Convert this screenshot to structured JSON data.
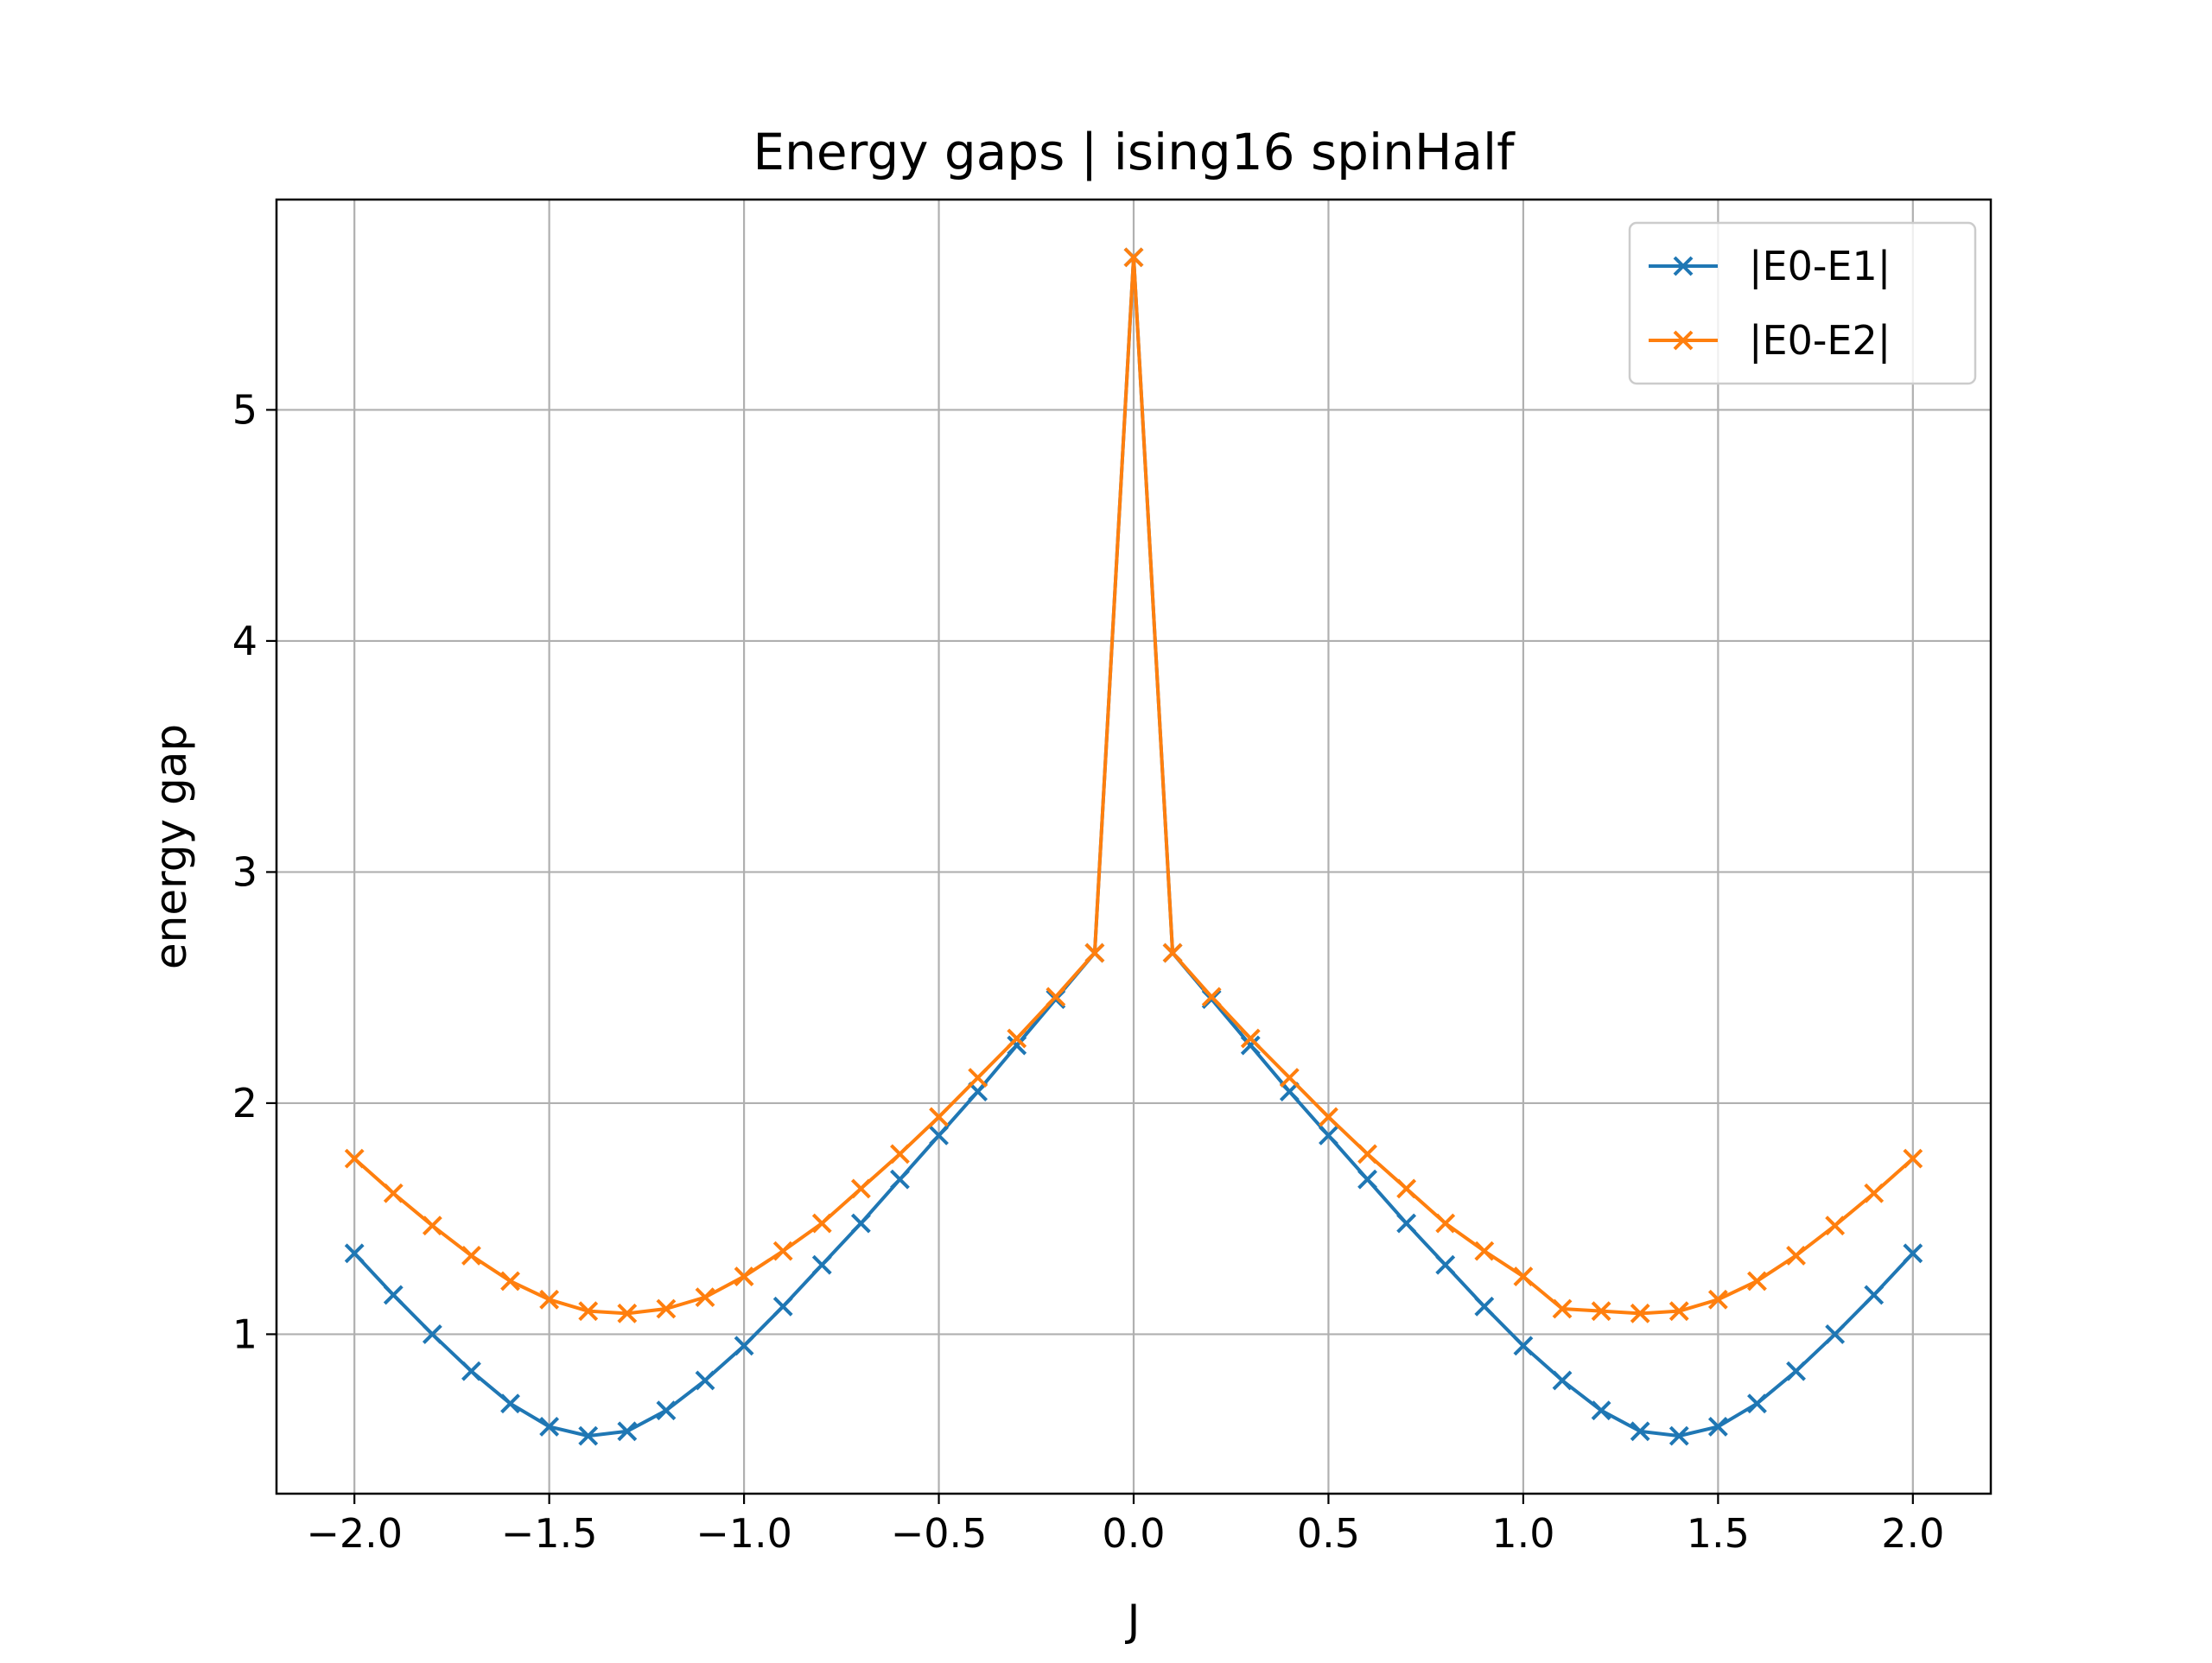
{
  "chart_data": {
    "type": "line",
    "title": "Energy gaps | ising16 spinHalf",
    "xlabel": "J",
    "ylabel": "energy gap",
    "xlim": [
      -2.2,
      2.2
    ],
    "ylim": [
      0.31,
      5.91
    ],
    "x_ticks": [
      -2.0,
      -1.5,
      -1.0,
      -0.5,
      0.0,
      0.5,
      1.0,
      1.5,
      2.0
    ],
    "x_tick_labels": [
      "−2.0",
      "−1.5",
      "−1.0",
      "−0.5",
      "0.0",
      "0.5",
      "1.0",
      "1.5",
      "2.0"
    ],
    "y_ticks": [
      1,
      2,
      3,
      4,
      5
    ],
    "y_tick_labels": [
      "1",
      "2",
      "3",
      "4",
      "5"
    ],
    "grid": true,
    "legend_position": "top-right",
    "marker": "x",
    "x": [
      -2.0,
      -1.9,
      -1.8,
      -1.7,
      -1.6,
      -1.5,
      -1.4,
      -1.3,
      -1.2,
      -1.1,
      -1.0,
      -0.9,
      -0.8,
      -0.7,
      -0.6,
      -0.5,
      -0.4,
      -0.3,
      -0.2,
      -0.1,
      0.0,
      0.1,
      0.2,
      0.3,
      0.4,
      0.5,
      0.6,
      0.7,
      0.8,
      0.9,
      1.0,
      1.1,
      1.2,
      1.3,
      1.4,
      1.5,
      1.6,
      1.7,
      1.8,
      1.9,
      2.0
    ],
    "series": [
      {
        "name": "|E0-E1|",
        "color": "#1f77b4",
        "values": [
          1.35,
          1.17,
          1.0,
          0.84,
          0.7,
          0.6,
          0.56,
          0.58,
          0.67,
          0.8,
          0.95,
          1.12,
          1.3,
          1.48,
          1.67,
          1.86,
          2.05,
          2.25,
          2.45,
          2.65,
          5.66,
          2.65,
          2.45,
          2.25,
          2.05,
          1.86,
          1.67,
          1.48,
          1.3,
          1.12,
          0.95,
          0.8,
          0.67,
          0.58,
          0.56,
          0.6,
          0.7,
          0.84,
          1.0,
          1.17,
          1.35
        ]
      },
      {
        "name": "|E0-E2|",
        "color": "#ff7f0e",
        "values": [
          1.76,
          1.61,
          1.47,
          1.34,
          1.23,
          1.15,
          1.1,
          1.09,
          1.11,
          1.16,
          1.25,
          1.36,
          1.48,
          1.63,
          1.78,
          1.94,
          2.11,
          2.28,
          2.46,
          2.65,
          5.66,
          2.65,
          2.46,
          2.28,
          2.11,
          1.94,
          1.78,
          1.63,
          1.48,
          1.36,
          1.25,
          1.11,
          1.1,
          1.09,
          1.1,
          1.15,
          1.23,
          1.34,
          1.47,
          1.61,
          1.76
        ]
      }
    ]
  }
}
